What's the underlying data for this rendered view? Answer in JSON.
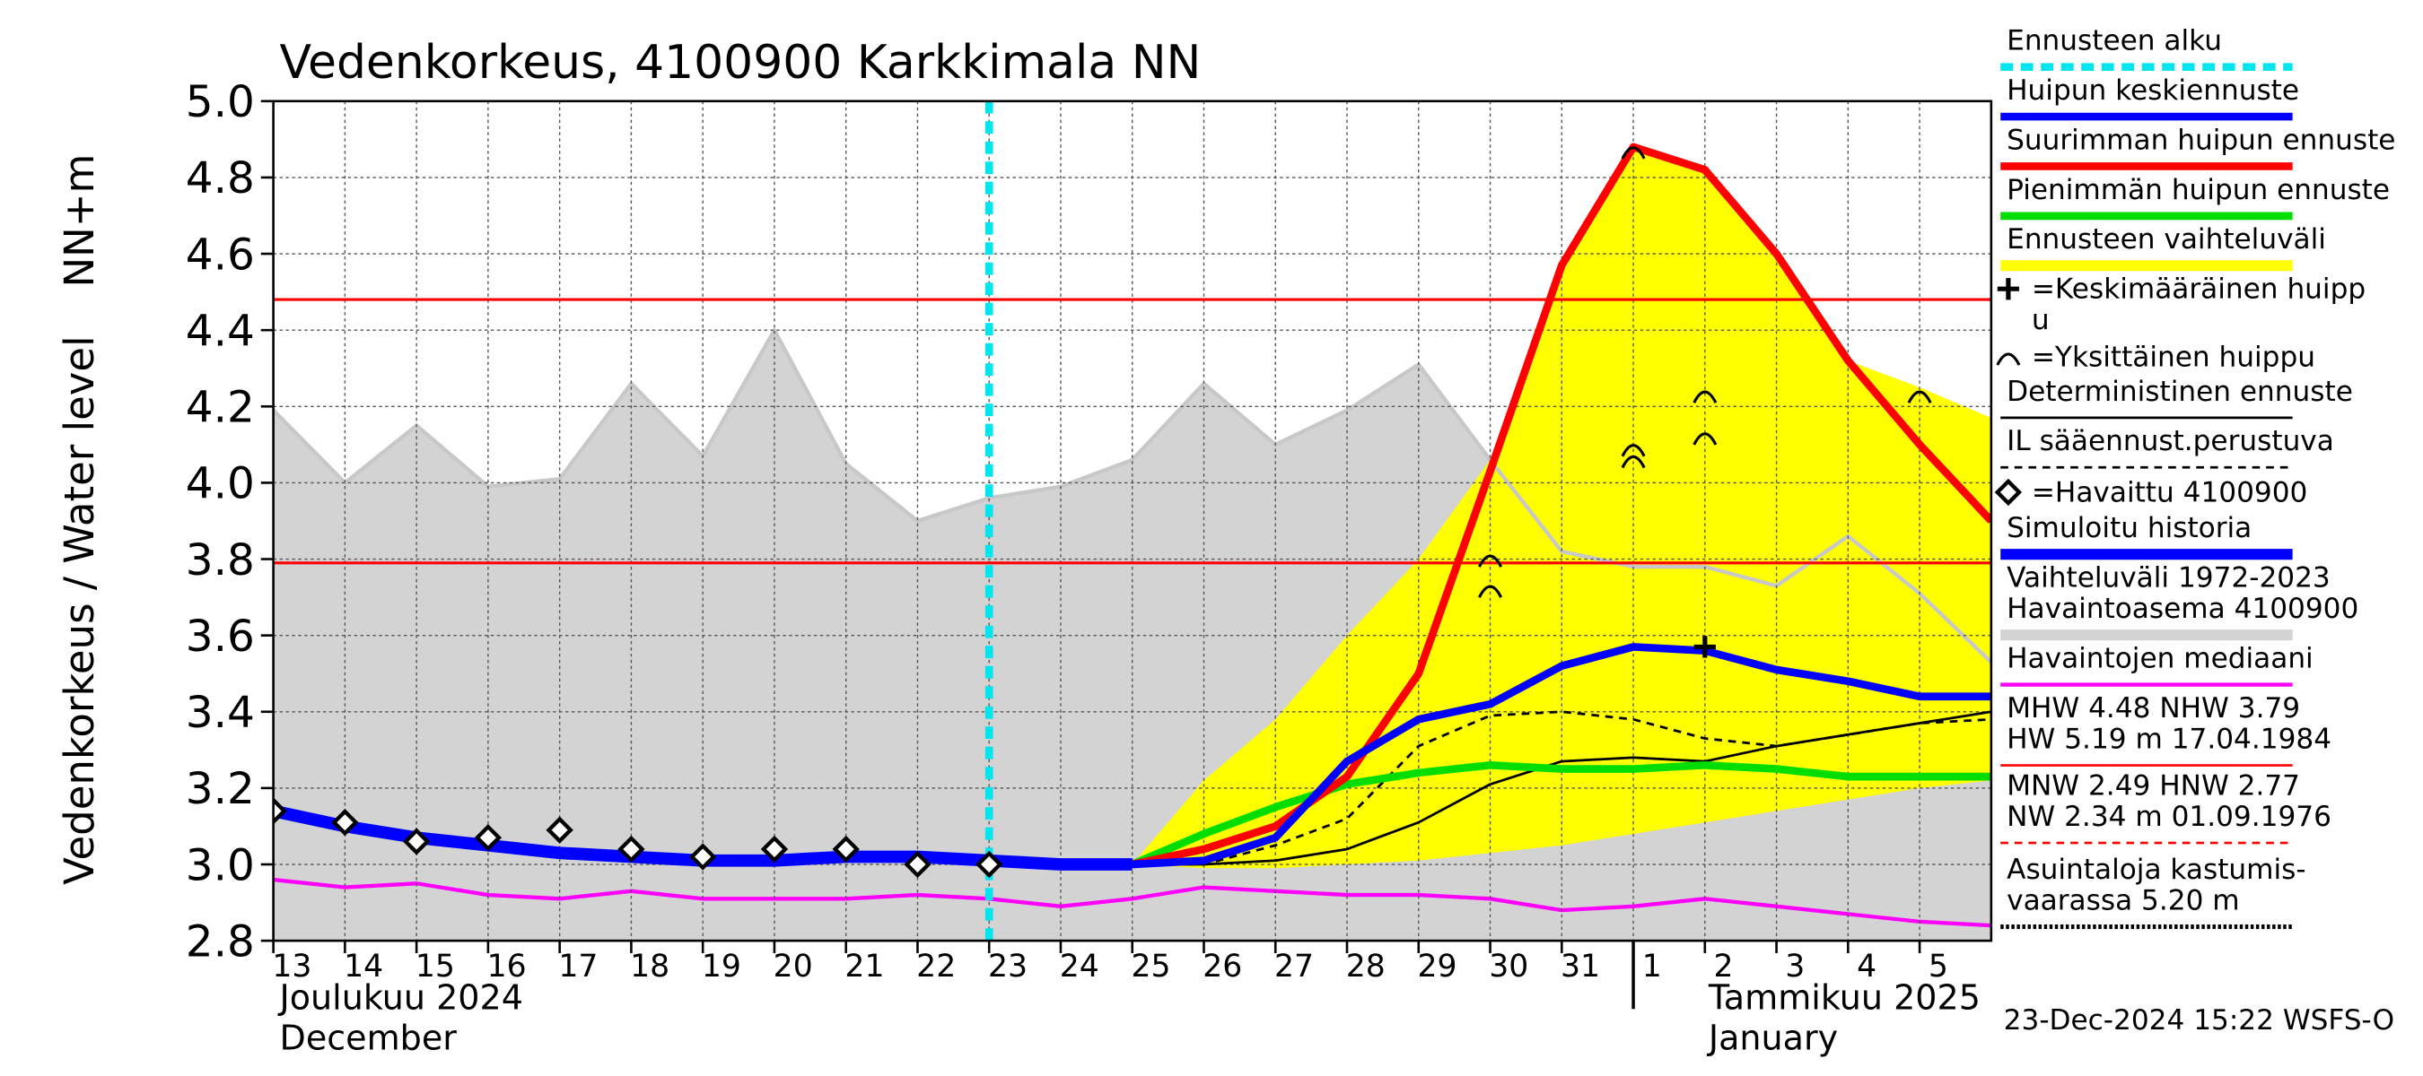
{
  "chart_data": {
    "type": "line",
    "title": "Vedenkorkeus, 4100900 Karkkimala NN",
    "ylabel": "Vedenkorkeus / Water level",
    "ylabel2": "NN+m",
    "month_labels": [
      "Joulukuu  2024",
      "December",
      "Tammikuu  2025",
      "January"
    ],
    "timestamp": "23-Dec-2024 15:22 WSFS-O",
    "grid": true,
    "x": [
      "2024-12-13",
      "2024-12-14",
      "2024-12-15",
      "2024-12-16",
      "2024-12-17",
      "2024-12-18",
      "2024-12-19",
      "2024-12-20",
      "2024-12-21",
      "2024-12-22",
      "2024-12-23",
      "2024-12-24",
      "2024-12-25",
      "2024-12-26",
      "2024-12-27",
      "2024-12-28",
      "2024-12-29",
      "2024-12-30",
      "2024-12-31",
      "2025-01-01",
      "2025-01-02",
      "2025-01-03",
      "2025-01-04",
      "2025-01-05",
      "2025-01-06"
    ],
    "xlim": [
      "2024-12-13",
      "2025-01-06"
    ],
    "xticks": [
      {
        "value": "2024-12-13",
        "label": "13"
      },
      {
        "value": "2024-12-14",
        "label": "14"
      },
      {
        "value": "2024-12-15",
        "label": "15"
      },
      {
        "value": "2024-12-16",
        "label": "16"
      },
      {
        "value": "2024-12-17",
        "label": "17"
      },
      {
        "value": "2024-12-18",
        "label": "18"
      },
      {
        "value": "2024-12-19",
        "label": "19"
      },
      {
        "value": "2024-12-20",
        "label": "20"
      },
      {
        "value": "2024-12-21",
        "label": "21"
      },
      {
        "value": "2024-12-22",
        "label": "22"
      },
      {
        "value": "2024-12-23",
        "label": "23"
      },
      {
        "value": "2024-12-24",
        "label": "24"
      },
      {
        "value": "2024-12-25",
        "label": "25"
      },
      {
        "value": "2024-12-26",
        "label": "26"
      },
      {
        "value": "2024-12-27",
        "label": "27"
      },
      {
        "value": "2024-12-28",
        "label": "28"
      },
      {
        "value": "2024-12-29",
        "label": "29"
      },
      {
        "value": "2024-12-30",
        "label": "30"
      },
      {
        "value": "2024-12-31",
        "label": "31"
      },
      {
        "value": "2025-01-01",
        "label": "1"
      },
      {
        "value": "2025-01-02",
        "label": "2"
      },
      {
        "value": "2025-01-03",
        "label": "3"
      },
      {
        "value": "2025-01-04",
        "label": "4"
      },
      {
        "value": "2025-01-05",
        "label": "5"
      }
    ],
    "month_break": "2025-01-01",
    "ylim": [
      2.8,
      5.0
    ],
    "yticks": [
      2.8,
      {
        "value": 3.0,
        "label": "3.0"
      },
      3.2,
      3.4,
      3.6,
      3.8,
      {
        "value": 4.0,
        "label": "4.0"
      },
      4.2,
      4.4,
      4.6,
      4.8,
      {
        "value": 5.0,
        "label": "5.0"
      }
    ],
    "forecast_start": "2024-12-23",
    "hlines": [
      {
        "value": 4.48,
        "color": "#ff0000"
      },
      {
        "value": 3.79,
        "color": "#ff0000"
      }
    ],
    "series": [
      {
        "kind": "band",
        "color": "#d3d3d3",
        "outline": "#c8c8c8",
        "values": [
          4.19,
          4.0,
          4.15,
          3.99,
          4.01,
          4.26,
          4.07,
          4.4,
          4.05,
          3.9,
          3.96,
          3.99,
          4.06,
          4.26,
          4.1,
          4.19,
          4.31,
          4.06,
          3.82,
          3.78,
          3.78,
          3.73,
          3.86,
          3.71,
          3.53
        ],
        "lower": [
          2.8,
          2.8,
          2.8,
          2.8,
          2.8,
          2.8,
          2.8,
          2.8,
          2.8,
          2.8,
          2.8,
          2.8,
          2.8,
          2.8,
          2.8,
          2.8,
          2.8,
          2.8,
          2.8,
          2.8,
          2.8,
          2.8,
          2.8,
          2.8,
          2.8
        ]
      },
      {
        "kind": "line",
        "color": "#ff00ff",
        "width": 2.5,
        "values": [
          2.96,
          2.94,
          2.95,
          2.92,
          2.91,
          2.93,
          2.91,
          2.91,
          2.91,
          2.92,
          2.91,
          2.89,
          2.91,
          2.94,
          2.93,
          2.92,
          2.92,
          2.91,
          2.88,
          2.89,
          2.91,
          2.89,
          2.87,
          2.85,
          2.84
        ]
      },
      {
        "kind": "band",
        "color": "#ffff00",
        "values": [
          null,
          null,
          null,
          null,
          null,
          null,
          null,
          null,
          null,
          null,
          null,
          null,
          3.0,
          3.22,
          3.38,
          3.6,
          3.8,
          4.06,
          4.57,
          4.88,
          4.82,
          4.6,
          4.32,
          4.25,
          4.17
        ],
        "lower": [
          null,
          null,
          null,
          null,
          null,
          null,
          null,
          null,
          null,
          null,
          null,
          null,
          3.0,
          2.99,
          2.99,
          3.0,
          3.01,
          3.03,
          3.05,
          3.08,
          3.11,
          3.14,
          3.17,
          3.2,
          3.22
        ]
      },
      {
        "kind": "line",
        "color": "#000000",
        "width": 1.6,
        "dash": "5,4",
        "values": [
          null,
          null,
          null,
          null,
          null,
          null,
          null,
          null,
          null,
          null,
          null,
          null,
          3.0,
          3.0,
          3.05,
          3.12,
          3.31,
          3.39,
          3.4,
          3.38,
          3.33,
          3.31,
          3.34,
          3.37,
          3.38
        ]
      },
      {
        "kind": "line",
        "color": "#000000",
        "width": 1.6,
        "values": [
          null,
          null,
          null,
          null,
          null,
          null,
          null,
          null,
          null,
          null,
          null,
          null,
          3.0,
          3.0,
          3.01,
          3.04,
          3.11,
          3.21,
          3.27,
          3.28,
          3.27,
          3.31,
          3.34,
          3.37,
          3.4
        ]
      },
      {
        "kind": "line",
        "color": "#00dd00",
        "width": 5,
        "values": [
          null,
          null,
          null,
          null,
          null,
          null,
          null,
          null,
          null,
          null,
          null,
          null,
          3.0,
          3.08,
          3.15,
          3.21,
          3.24,
          3.26,
          3.25,
          3.25,
          3.26,
          3.25,
          3.23,
          3.23,
          3.23
        ]
      },
      {
        "kind": "line",
        "color": "#ff0000",
        "width": 5,
        "values": [
          null,
          null,
          null,
          null,
          null,
          null,
          null,
          null,
          null,
          null,
          null,
          null,
          3.0,
          3.04,
          3.1,
          3.23,
          3.5,
          4.03,
          4.57,
          4.88,
          4.82,
          4.6,
          4.32,
          4.1,
          3.9
        ]
      },
      {
        "kind": "line",
        "color": "#0000ff",
        "width": 8,
        "values": [
          3.14,
          3.1,
          3.07,
          3.05,
          3.03,
          3.02,
          3.01,
          3.01,
          3.02,
          3.02,
          3.01,
          3.0,
          3.0,
          null,
          null,
          null,
          null,
          null,
          null,
          null,
          null,
          null,
          null,
          null,
          null
        ]
      },
      {
        "kind": "line",
        "color": "#0000ff",
        "width": 5,
        "values": [
          null,
          null,
          null,
          null,
          null,
          null,
          null,
          null,
          null,
          null,
          null,
          null,
          3.0,
          3.01,
          3.07,
          3.27,
          3.38,
          3.42,
          3.52,
          3.57,
          3.56,
          3.51,
          3.48,
          3.44,
          3.44
        ]
      },
      {
        "kind": "markers",
        "color": "#000000",
        "values": [
          3.14,
          3.11,
          3.06,
          3.07,
          3.09,
          3.04,
          3.02,
          3.04,
          3.04,
          3.0,
          3.0,
          null,
          null,
          null,
          null,
          null,
          null,
          null,
          null,
          null,
          null,
          null,
          null,
          null,
          null
        ]
      }
    ],
    "mean_peaks": [
      {
        "x": "2025-01-02",
        "y": 3.57
      }
    ],
    "single_peaks": [
      {
        "x": "2024-12-30",
        "y": 3.8
      },
      {
        "x": "2024-12-30",
        "y": 3.72
      },
      {
        "x": "2025-01-01",
        "y": 4.87
      },
      {
        "x": "2025-01-01",
        "y": 4.09
      },
      {
        "x": "2025-01-01",
        "y": 4.06
      },
      {
        "x": "2025-01-02",
        "y": 4.23
      },
      {
        "x": "2025-01-02",
        "y": 4.12
      },
      {
        "x": "2025-01-05",
        "y": 4.23
      }
    ],
    "legend": [
      {
        "lines": [
          "Ennusteen alku"
        ],
        "color": "#00e5ee",
        "style": "dashed",
        "width": 5
      },
      {
        "lines": [
          "Huipun keskiennuste"
        ],
        "color": "#0000ff",
        "style": "solid",
        "width": 5
      },
      {
        "lines": [
          "Suurimman huipun ennuste"
        ],
        "color": "#ff0000",
        "style": "solid",
        "width": 5
      },
      {
        "lines": [
          "Pienimmän huipun ennuste"
        ],
        "color": "#00dd00",
        "style": "solid",
        "width": 5
      },
      {
        "lines": [
          "Ennusteen vaihteluväli"
        ],
        "color": "#ffff00",
        "style": "solid",
        "width": 7
      },
      {
        "lines": [
          "=Keskimääräinen huipp",
          "u"
        ],
        "color": "#000000",
        "style": "none",
        "symbol": "cross"
      },
      {
        "lines": [
          "=Yksittäinen huippu"
        ],
        "color": "#000000",
        "style": "none",
        "symbol": "arc"
      },
      {
        "lines": [
          "Deterministinen ennuste"
        ],
        "color": "#000000",
        "style": "solid",
        "width": 1.6
      },
      {
        "lines": [
          "IL sääennust.perustuva"
        ],
        "color": "#000000",
        "style": "dashed",
        "width": 1.6
      },
      {
        "lines": [
          "=Havaittu 4100900"
        ],
        "color": "#000000",
        "style": "none",
        "symbol": "diamond"
      },
      {
        "lines": [
          "Simuloitu historia"
        ],
        "color": "#0000ff",
        "style": "solid",
        "width": 7
      },
      {
        "lines": [
          "Vaihteluväli 1972-2023",
          " Havaintoasema 4100900"
        ],
        "color": "#d3d3d3",
        "style": "solid",
        "width": 7
      },
      {
        "lines": [
          "Havaintojen mediaani"
        ],
        "color": "#ff00ff",
        "style": "solid",
        "width": 2.5
      },
      {
        "lines": [
          "MHW   4.48 NHW   3.79",
          "HW    5.19 m 17.04.1984"
        ],
        "color": "#ff0000",
        "style": "solid",
        "width": 1.5
      },
      {
        "lines": [
          "MNW   2.49 HNW   2.77",
          "NW   2.34 m 01.09.1976"
        ],
        "color": "#ff0000",
        "style": "dashed",
        "width": 1.5
      },
      {
        "lines": [
          "Asuintaloja kastumis-",
          "vaarassa 5.20 m"
        ],
        "color": "#000000",
        "style": "dotted",
        "width": 3
      }
    ]
  }
}
